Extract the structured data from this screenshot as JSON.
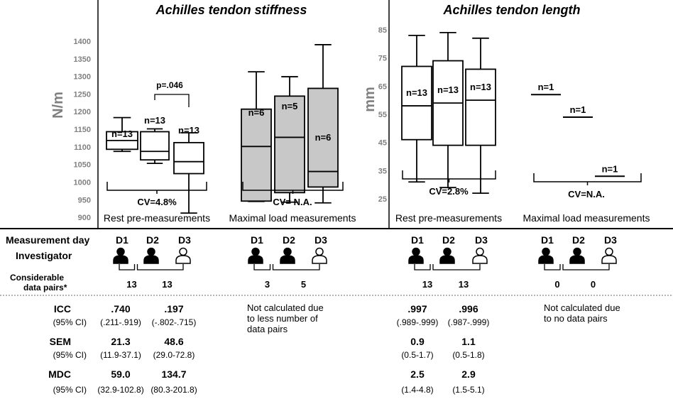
{
  "colors": {
    "ink": "#000000",
    "axis_label": "#808080",
    "tick": "#808080",
    "box_fill_gray": "#c8c8c8",
    "divider": "#000000"
  },
  "chart_data": [
    {
      "type": "box",
      "title": "Achilles tendon stiffness",
      "ylabel": "N/m",
      "ylim": [
        880,
        1410
      ],
      "yticks": [
        900,
        950,
        1000,
        1050,
        1100,
        1150,
        1200,
        1250,
        1300,
        1350,
        1400
      ],
      "groups": [
        {
          "name": "Rest pre-measurements",
          "cv": "CV=4.8%",
          "fill": "white",
          "annotation": "p=.046",
          "boxes": [
            {
              "day": "D1",
              "n": "n=13",
              "min": 1087,
              "q1": 1093,
              "median": 1118,
              "q3": 1143,
              "max": 1183
            },
            {
              "day": "D2",
              "n": "n=13",
              "min": 1053,
              "q1": 1063,
              "median": 1087,
              "q3": 1143,
              "max": 1151
            },
            {
              "day": "D3",
              "n": "n=13",
              "min": 912,
              "q1": 1024,
              "median": 1058,
              "q3": 1112,
              "max": 1140
            }
          ]
        },
        {
          "name": "Maximal load measurements",
          "cv": "CV= N.A.",
          "fill": "gray",
          "boxes": [
            {
              "day": "D1",
              "n": "n=6",
              "min": 945,
              "q1": 946,
              "median": 1101,
              "q3": 1207,
              "max": 1313
            },
            {
              "day": "D2",
              "n": "n=5",
              "min": 943,
              "q1": 970,
              "median": 1127,
              "q3": 1244,
              "max": 1299
            },
            {
              "day": "D3",
              "n": "n=6",
              "min": 941,
              "q1": 986,
              "median": 1030,
              "q3": 1266,
              "max": 1390
            }
          ]
        }
      ]
    },
    {
      "type": "box",
      "title": "Achilles tendon length",
      "ylabel": "mm",
      "ylim": [
        23,
        88
      ],
      "yticks": [
        25,
        35,
        45,
        55,
        65,
        75,
        85
      ],
      "groups": [
        {
          "name": "Rest pre-measurements",
          "cv": "CV=2.8%",
          "fill": "white",
          "boxes": [
            {
              "day": "D1",
              "n": "n=13",
              "min": 31,
              "q1": 46,
              "median": 58,
              "q3": 72,
              "max": 83
            },
            {
              "day": "D2",
              "n": "n=13",
              "min": 29,
              "q1": 44,
              "median": 59,
              "q3": 74,
              "max": 84
            },
            {
              "day": "D3",
              "n": "n=13",
              "min": 27,
              "q1": 44,
              "median": 60,
              "q3": 71,
              "max": 82
            }
          ]
        },
        {
          "name": "Maximal load measurements",
          "cv": "CV=N.A.",
          "fill": "none",
          "singles": [
            {
              "day": "D1",
              "n": "n=1",
              "value": 62
            },
            {
              "day": "D2",
              "n": "n=1",
              "value": 54
            },
            {
              "day": "D3",
              "n": "n=1",
              "value": 33
            }
          ]
        }
      ]
    }
  ],
  "table": {
    "row_labels": {
      "day": "Measurement day",
      "investigator": "Investigator",
      "pairs": "Considerable data pairs*",
      "icc": "ICC",
      "sem": "SEM",
      "mdc": "MDC",
      "ci": "(95% CI)"
    },
    "day_labels": [
      "D1",
      "D2",
      "D3"
    ],
    "investigators": [
      {
        "D1": "filled",
        "D2": "filled",
        "D3": "outline"
      }
    ],
    "panels": [
      {
        "pairs": [
          "13",
          "13"
        ],
        "stats": {
          "icc": {
            "values": [
              ".740",
              ".197"
            ],
            "ci": [
              "(.211-.919)",
              "(-.802-.715)"
            ]
          },
          "sem": {
            "values": [
              "21.3",
              "48.6"
            ],
            "ci": [
              "(11.9-37.1)",
              "(29.0-72.8)"
            ]
          },
          "mdc": {
            "values": [
              "59.0",
              "134.7"
            ],
            "ci": [
              "(32.9-102.8)",
              "(80.3-201.8)"
            ]
          }
        }
      },
      {
        "pairs": [
          "3",
          "5"
        ],
        "note": [
          "Not calculated due",
          "to less number of",
          "data pairs"
        ]
      },
      {
        "pairs": [
          "13",
          "13"
        ],
        "stats": {
          "icc": {
            "values": [
              ".997",
              ".996"
            ],
            "ci": [
              "(.989-.999)",
              "(.987-.999)"
            ]
          },
          "sem": {
            "values": [
              "0.9",
              "1.1"
            ],
            "ci": [
              "(0.5-1.7)",
              "(0.5-1.8)"
            ]
          },
          "mdc": {
            "values": [
              "2.5",
              "2.9"
            ],
            "ci": [
              "(1.4-4.8)",
              "(1.5-5.1)"
            ]
          }
        }
      },
      {
        "pairs": [
          "0",
          "0"
        ],
        "note": [
          "Not calculated due",
          "to no data pairs"
        ]
      }
    ]
  }
}
